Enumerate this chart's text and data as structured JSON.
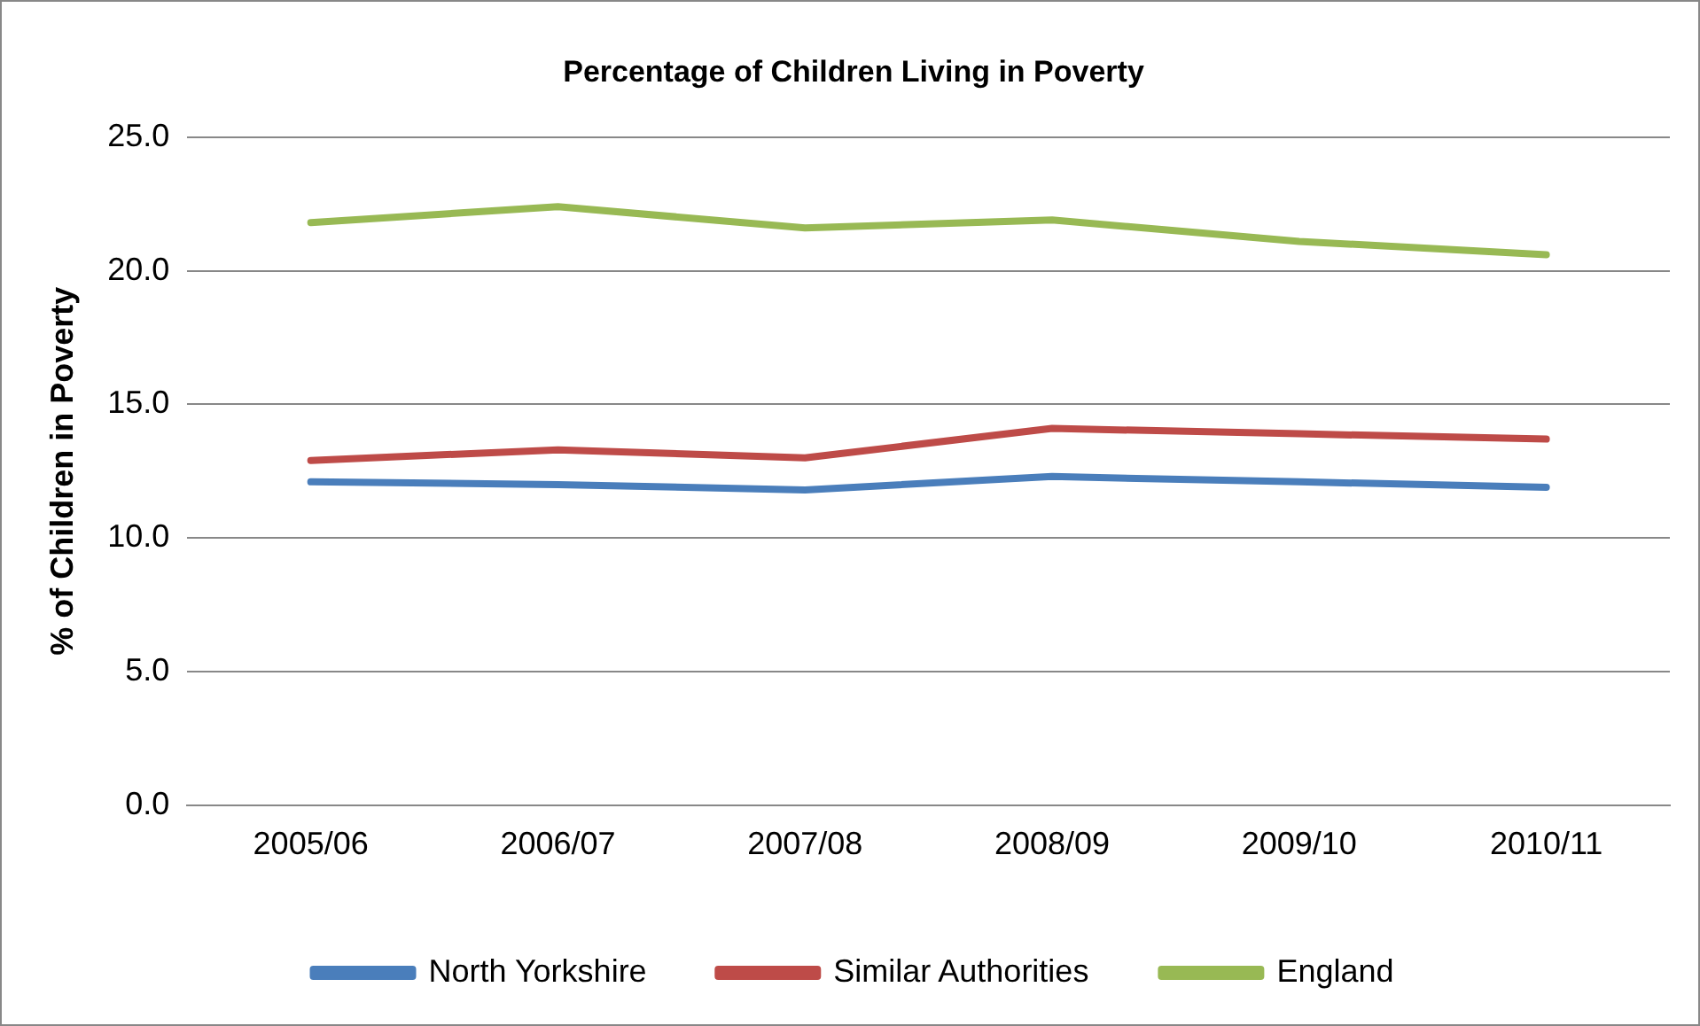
{
  "chart_data": {
    "type": "line",
    "title": "Percentage of Children Living in Poverty",
    "ylabel": "% of Children in Poverty",
    "categories": [
      "2005/06",
      "2006/07",
      "2007/08",
      "2008/09",
      "2009/10",
      "2010/11"
    ],
    "series": [
      {
        "name": "North Yorkshire",
        "color": "#4a7ebb",
        "values": [
          12.1,
          12.0,
          11.8,
          12.3,
          12.1,
          11.9
        ]
      },
      {
        "name": "Similar Authorities",
        "color": "#be4b48",
        "values": [
          12.9,
          13.3,
          13.0,
          14.1,
          13.9,
          13.7
        ]
      },
      {
        "name": "England",
        "color": "#98b954",
        "values": [
          21.8,
          22.4,
          21.6,
          21.9,
          21.1,
          20.6
        ]
      }
    ],
    "ylim": [
      0,
      25
    ],
    "yticks": [
      {
        "value": 0,
        "label": "0.0"
      },
      {
        "value": 5,
        "label": "5.0"
      },
      {
        "value": 10,
        "label": "10.0"
      },
      {
        "value": 15,
        "label": "15.0"
      },
      {
        "value": 20,
        "label": "20.0"
      },
      {
        "value": 25,
        "label": "25.0"
      }
    ],
    "grid": "y",
    "legend": "bottom",
    "marker": "none",
    "line_style": "solid"
  }
}
